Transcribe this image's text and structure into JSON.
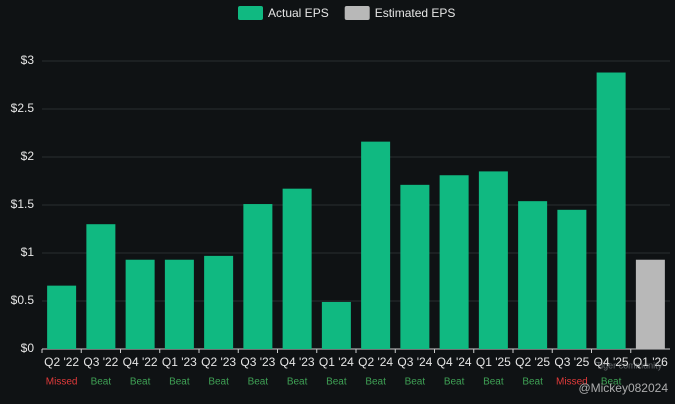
{
  "chart_data": {
    "type": "bar",
    "categories": [
      "Q2 '22",
      "Q3 '22",
      "Q4 '22",
      "Q1 '23",
      "Q2 '23",
      "Q3 '23",
      "Q4 '23",
      "Q1 '24",
      "Q2 '24",
      "Q3 '24",
      "Q4 '24",
      "Q1 '25",
      "Q2 '25",
      "Q3 '25",
      "Q4 '25",
      "Q1 '26"
    ],
    "series": [
      {
        "name": "Actual EPS",
        "color": "#10b981",
        "values": [
          0.66,
          1.3,
          0.93,
          0.93,
          0.97,
          1.51,
          1.67,
          0.49,
          2.16,
          1.71,
          1.81,
          1.85,
          1.54,
          1.45,
          2.88,
          null
        ]
      },
      {
        "name": "Estimated EPS",
        "color": "#b8b8b8",
        "values": [
          null,
          null,
          null,
          null,
          null,
          null,
          null,
          null,
          null,
          null,
          null,
          null,
          null,
          null,
          null,
          0.93
        ]
      }
    ],
    "results": [
      "Missed",
      "Beat",
      "Beat",
      "Beat",
      "Beat",
      "Beat",
      "Beat",
      "Beat",
      "Beat",
      "Beat",
      "Beat",
      "Beat",
      "Beat",
      "Missed",
      "Beat",
      null
    ],
    "result_colors": [
      "#e03a3a",
      "#3fa155",
      "#3fa155",
      "#3fa155",
      "#3fa155",
      "#3fa155",
      "#3fa155",
      "#3fa155",
      "#3fa155",
      "#3fa155",
      "#3fa155",
      "#3fa155",
      "#3fa155",
      "#e03a3a",
      "#3fa155",
      null
    ],
    "ylim": [
      0,
      3
    ],
    "yticks": [
      {
        "value": 0,
        "label": "$0"
      },
      {
        "value": 0.5,
        "label": "$0.5"
      },
      {
        "value": 1,
        "label": "$1"
      },
      {
        "value": 1.5,
        "label": "$1.5"
      },
      {
        "value": 2,
        "label": "$2"
      },
      {
        "value": 2.5,
        "label": "$2.5"
      },
      {
        "value": 3,
        "label": "$3"
      }
    ],
    "grid": true,
    "legend": "top",
    "watermark": "Tiger community",
    "credit": "@Mickey082024"
  }
}
